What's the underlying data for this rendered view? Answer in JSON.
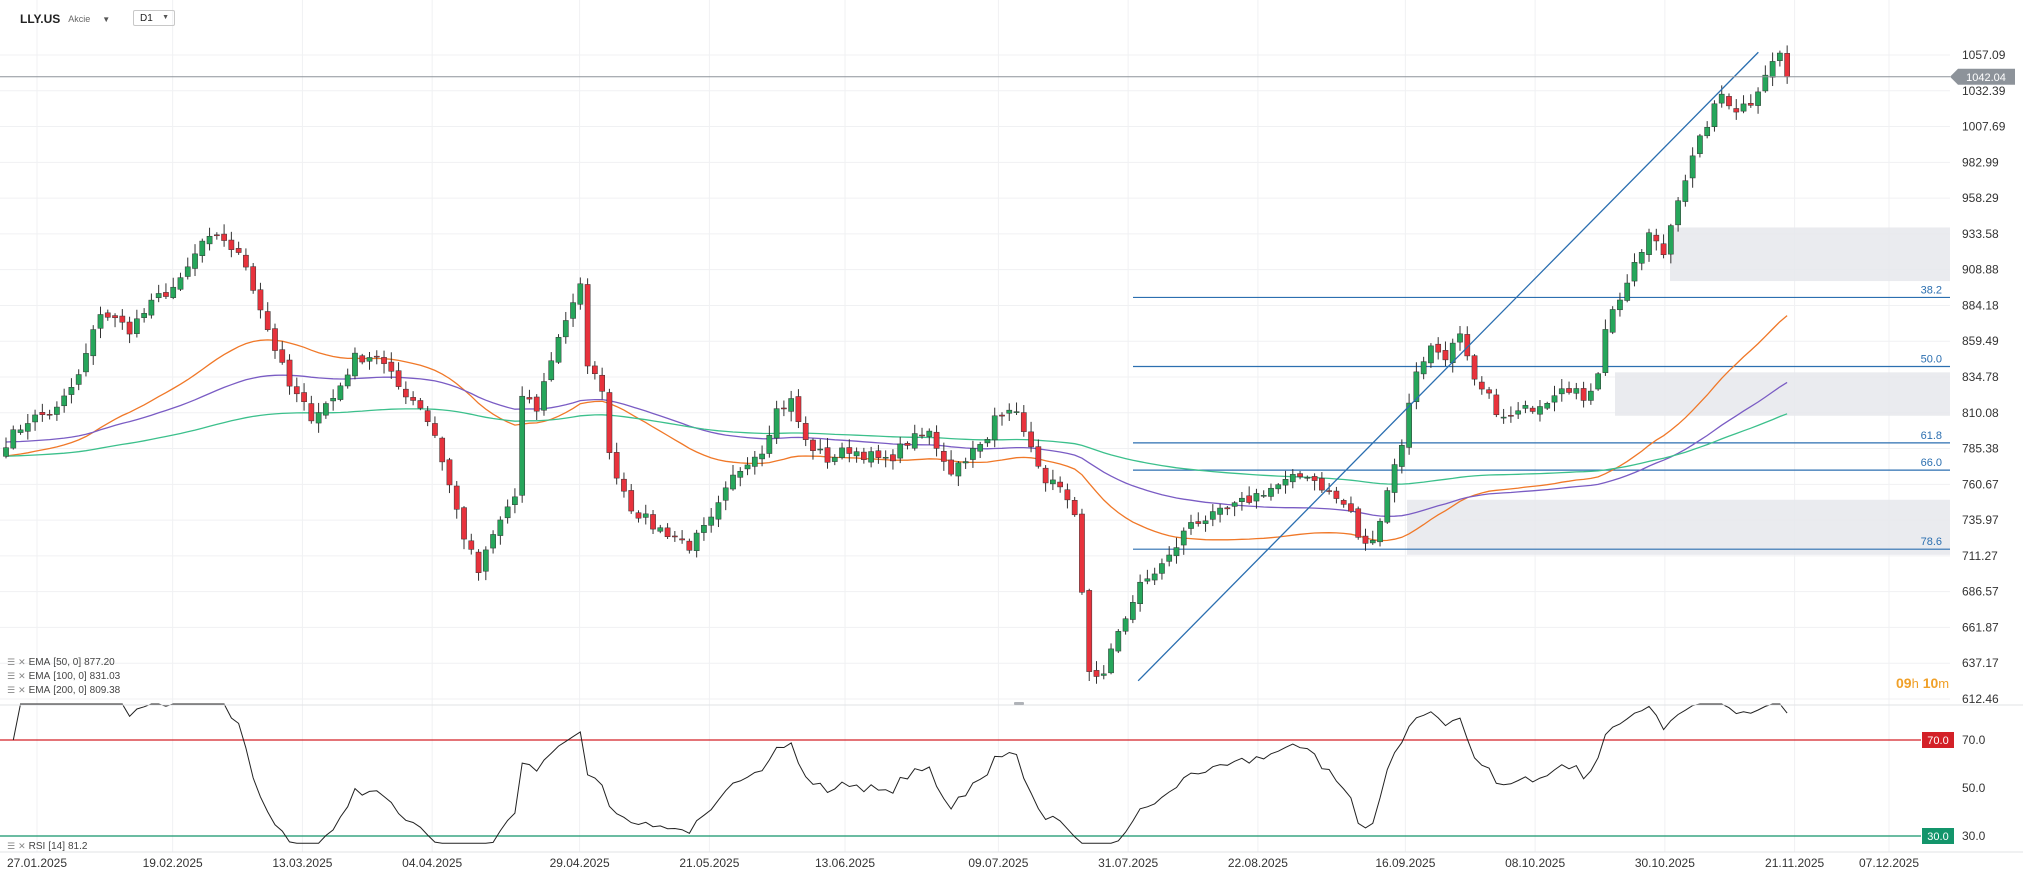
{
  "header": {
    "symbol": "LLY.US",
    "instrument_type": "Akcie",
    "timeframe": "D1"
  },
  "legend": {
    "ema": [
      {
        "name": "EMA",
        "params": "[50, 0]",
        "value": "877.20",
        "color": "#f07828"
      },
      {
        "name": "EMA",
        "params": "[100, 0]",
        "value": "831.03",
        "color": "#7a5cc4"
      },
      {
        "name": "EMA",
        "params": "[200, 0]",
        "value": "809.38",
        "color": "#3cc08c"
      }
    ],
    "rsi": {
      "name": "RSI",
      "params": "[14]",
      "value": "81.2"
    }
  },
  "timer": {
    "hours": "09",
    "h_unit": "h",
    "minutes": "10",
    "m_unit": "m"
  },
  "colors": {
    "up": "#26a65b",
    "down": "#e8323c",
    "fib": "#2c6fb0",
    "trend": "#2a6eb0",
    "rsi_line": "#222222",
    "rsi_70": "#d32027",
    "rsi_30": "#13956b",
    "zone": "#e6e8ec",
    "current_price": "#8d939a"
  },
  "chart_data": {
    "type": "candlestick",
    "y_ticks": [
      "1057.09",
      "1032.39",
      "1007.69",
      "982.99",
      "958.29",
      "933.58",
      "908.88",
      "884.18",
      "859.49",
      "834.78",
      "810.08",
      "785.38",
      "760.67",
      "735.97",
      "711.27",
      "686.57",
      "661.87",
      "637.17",
      "612.46"
    ],
    "x_ticks": [
      "27.01.2025",
      "19.02.2025",
      "13.03.2025",
      "04.04.2025",
      "29.04.2025",
      "21.05.2025",
      "13.06.2025",
      "09.07.2025",
      "31.07.2025",
      "22.08.2025",
      "16.09.2025",
      "08.10.2025",
      "30.10.2025",
      "21.11.2025",
      "07.12.2025"
    ],
    "current_price": "1042.04",
    "fib_levels": [
      {
        "label": "38.2",
        "price": 889.7
      },
      {
        "label": "50.0",
        "price": 842.0
      },
      {
        "label": "61.8",
        "price": 789.3
      },
      {
        "label": "66.0",
        "price": 770.5
      },
      {
        "label": "78.6",
        "price": 715.9
      }
    ],
    "zones": [
      {
        "from": "29.10.2025",
        "price_low": 901,
        "price_high": 938
      },
      {
        "from": "29.10.2025",
        "price_low": 808,
        "price_high": 838
      },
      {
        "from": "16.09.2025",
        "price_low": 712,
        "price_high": 750
      }
    ],
    "trendline": [
      {
        "date": "31.07.2025",
        "price": 625
      },
      {
        "date": "14.11.2025",
        "price": 1059
      }
    ],
    "ema_current": {
      "ema50": 877.2,
      "ema100": 831.03,
      "ema200": 809.38
    },
    "rsi": {
      "levels": [
        "70.0",
        "30.0"
      ],
      "ticks": [
        "70.0",
        "50.0",
        "30.0"
      ],
      "upper": 70,
      "lower": 30,
      "current": 81.2
    }
  }
}
